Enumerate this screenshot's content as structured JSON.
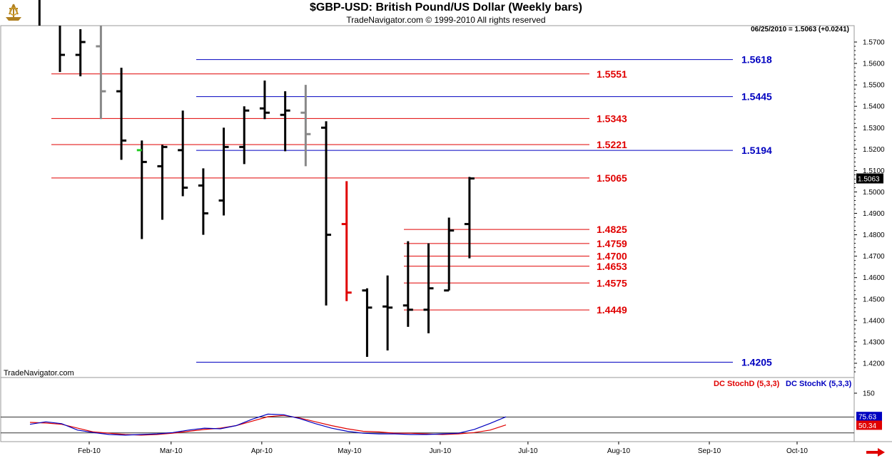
{
  "header": {
    "title": "$GBP-USD:  British Pound/US Dollar  (Weekly bars)",
    "subtitle": "TradeNavigator.com © 1999-2010 All rights reserved",
    "readout": "06/25/2010 = 1.5063 (+0.0241)",
    "corner_tag": "TradeNavigator.com"
  },
  "icons": {
    "logo": "ship-wheel-logo-icon",
    "scroll": "scroll-right-arrow-icon"
  },
  "colors": {
    "red_level": "#e00000",
    "blue_level": "#0000c0",
    "bar_black": "#000000",
    "bar_gray": "#888888",
    "bar_red": "#e00000",
    "bar_green": "#22cc22",
    "last_price_bg": "#000000"
  },
  "chart_data": [
    {
      "type": "ohlc",
      "title": "$GBP-USD:  British Pound/US Dollar  (Weekly bars)",
      "y_ticks": [
        "1.5700",
        "1.5600",
        "1.5500",
        "1.5400",
        "1.5300",
        "1.5200",
        "1.5100",
        "1.5000",
        "1.4900",
        "1.4800",
        "1.4700",
        "1.4600",
        "1.4500",
        "1.4400",
        "1.4300",
        "1.4200"
      ],
      "ylim": [
        1.4165,
        1.5765
      ],
      "x_ticks": [
        "Feb-10",
        "Mar-10",
        "Apr-10",
        "May-10",
        "Jun-10",
        "Jul-10",
        "Aug-10",
        "Sep-10",
        "Oct-10"
      ],
      "last_price": "1.5063",
      "bars": [
        {
          "week": "2010-01-15",
          "open": 1.621,
          "high": 1.632,
          "low": 1.612,
          "close": 1.628,
          "color": "black"
        },
        {
          "week": "2010-01-22",
          "open": 1.628,
          "high": 1.632,
          "low": 1.556,
          "close": 1.564,
          "color": "black"
        },
        {
          "week": "2010-01-29",
          "open": 1.564,
          "high": 1.576,
          "low": 1.554,
          "close": 1.57,
          "color": "black"
        },
        {
          "week": "2010-02-05",
          "open": 1.568,
          "high": 1.578,
          "low": 1.534,
          "close": 1.547,
          "color": "gray"
        },
        {
          "week": "2010-02-12",
          "open": 1.547,
          "high": 1.558,
          "low": 1.515,
          "close": 1.524,
          "color": "black"
        },
        {
          "week": "2010-02-19",
          "open": 1.5195,
          "high": 1.524,
          "low": 1.478,
          "close": 1.514,
          "color": "black",
          "open_color": "green"
        },
        {
          "week": "2010-02-26",
          "open": 1.512,
          "high": 1.522,
          "low": 1.487,
          "close": 1.521,
          "color": "black"
        },
        {
          "week": "2010-03-05",
          "open": 1.5195,
          "high": 1.538,
          "low": 1.498,
          "close": 1.502,
          "color": "black"
        },
        {
          "week": "2010-03-12",
          "open": 1.503,
          "high": 1.511,
          "low": 1.48,
          "close": 1.49,
          "color": "black"
        },
        {
          "week": "2010-03-19",
          "open": 1.496,
          "high": 1.53,
          "low": 1.489,
          "close": 1.521,
          "color": "black"
        },
        {
          "week": "2010-03-26",
          "open": 1.521,
          "high": 1.54,
          "low": 1.513,
          "close": 1.538,
          "color": "black"
        },
        {
          "week": "2010-04-02",
          "open": 1.539,
          "high": 1.552,
          "low": 1.534,
          "close": 1.537,
          "color": "black"
        },
        {
          "week": "2010-04-09",
          "open": 1.536,
          "high": 1.547,
          "low": 1.519,
          "close": 1.538,
          "color": "black"
        },
        {
          "week": "2010-04-16",
          "open": 1.537,
          "high": 1.55,
          "low": 1.512,
          "close": 1.527,
          "color": "gray"
        },
        {
          "week": "2010-04-23",
          "open": 1.53,
          "high": 1.533,
          "low": 1.447,
          "close": 1.48,
          "color": "black"
        },
        {
          "week": "2010-04-30",
          "open": 1.485,
          "high": 1.505,
          "low": 1.449,
          "close": 1.453,
          "color": "red"
        },
        {
          "week": "2010-05-07",
          "open": 1.454,
          "high": 1.455,
          "low": 1.423,
          "close": 1.446,
          "color": "black"
        },
        {
          "week": "2010-05-14",
          "open": 1.4465,
          "high": 1.461,
          "low": 1.426,
          "close": 1.446,
          "color": "black"
        },
        {
          "week": "2010-05-21",
          "open": 1.447,
          "high": 1.477,
          "low": 1.437,
          "close": 1.445,
          "color": "black"
        },
        {
          "week": "2010-05-28",
          "open": 1.445,
          "high": 1.476,
          "low": 1.434,
          "close": 1.455,
          "color": "black"
        },
        {
          "week": "2010-06-04",
          "open": 1.454,
          "high": 1.488,
          "low": 1.454,
          "close": 1.482,
          "color": "black"
        },
        {
          "week": "2010-06-11",
          "open": 1.485,
          "high": 1.507,
          "low": 1.469,
          "close": 1.5063,
          "color": "black"
        }
      ],
      "red_levels": [
        "1.5551",
        "1.5343",
        "1.5221",
        "1.5065",
        "1.4825",
        "1.4759",
        "1.4700",
        "1.4653",
        "1.4575",
        "1.4449"
      ],
      "blue_levels": [
        "1.5618",
        "1.5445",
        "1.5194",
        "1.4205"
      ]
    },
    {
      "type": "line",
      "title": "",
      "legend": [
        "DC StochD (5,3,3)",
        "DC StochK (5,3,3)"
      ],
      "y_ticks": [
        "150"
      ],
      "ylim": [
        -20,
        150
      ],
      "reference_lines": [
        75,
        25
      ],
      "last_values": {
        "k": "75.63",
        "d": "50.34"
      },
      "series": [
        {
          "name": "DC StochD (5,3,3)",
          "color": "red",
          "values": [
            58,
            56,
            52,
            40,
            28,
            24,
            20,
            18,
            20,
            24,
            30,
            36,
            40,
            48,
            62,
            76,
            80,
            72,
            60,
            48,
            38,
            30,
            28,
            24,
            24,
            22,
            20,
            22,
            26,
            34,
            50
          ]
        },
        {
          "name": "DC StochK (5,3,3)",
          "color": "blue",
          "values": [
            52,
            60,
            54,
            34,
            26,
            20,
            18,
            20,
            22,
            26,
            34,
            40,
            38,
            48,
            68,
            84,
            82,
            70,
            54,
            40,
            30,
            24,
            22,
            22,
            20,
            20,
            22,
            24,
            36,
            55,
            75.63
          ]
        }
      ]
    }
  ]
}
